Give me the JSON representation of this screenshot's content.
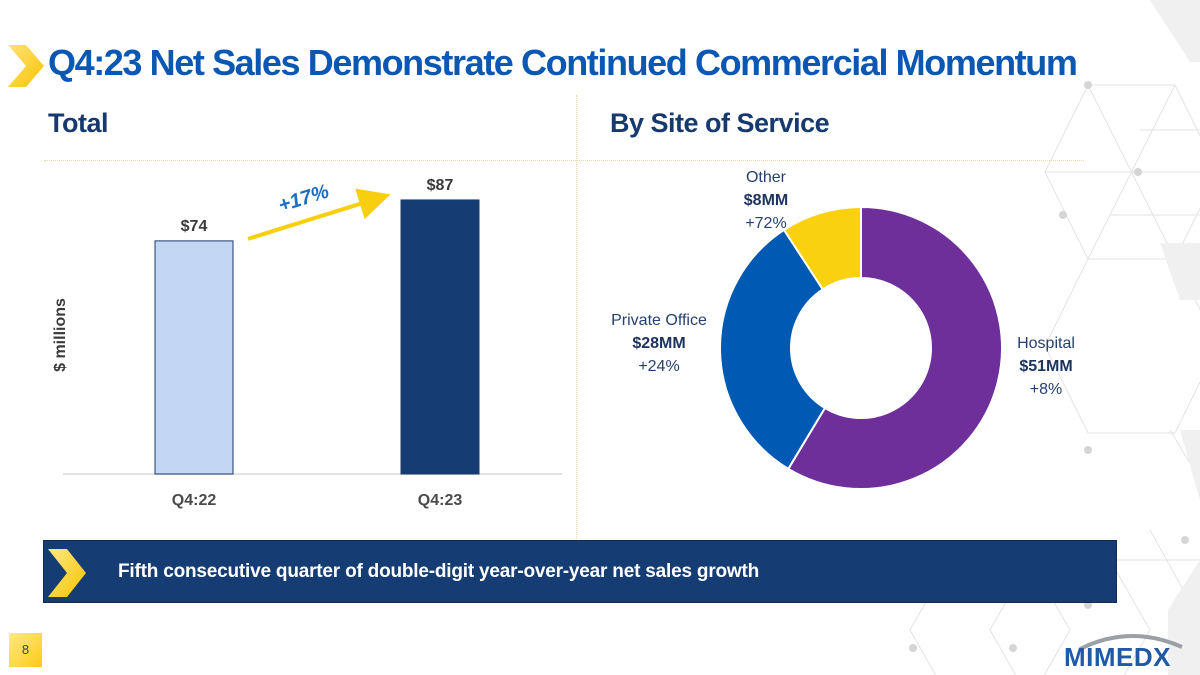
{
  "slide": {
    "title": "Q4:23 Net Sales Demonstrate Continued Commercial Momentum",
    "page_number": "8",
    "logo_text": "MIMEDX",
    "callout_text": "Fifth consecutive quarter of double-digit year-over-year net sales growth",
    "colors": {
      "title_blue": "#0a58b4",
      "navy": "#163d73",
      "accent_yellow": "#f8cf0e",
      "light_blue_bar": "#c3d6f3",
      "dark_blue_bar": "#163d73",
      "hospital": "#6e2f9b",
      "private_office": "#005ab4",
      "other": "#fad10f"
    }
  },
  "sections": {
    "left_title": "Total",
    "right_title": "By Site of Service"
  },
  "chart_data": [
    {
      "type": "bar",
      "title": "Total",
      "categories": [
        "Q4:22",
        "Q4:23"
      ],
      "values": [
        74,
        87
      ],
      "data_labels": [
        "$74",
        "$87"
      ],
      "xlabel": "",
      "ylabel": "$ millions",
      "ylim": [
        0,
        100
      ],
      "grid": false,
      "annotation": {
        "text": "+17%",
        "type": "arrow",
        "from": "Q4:22",
        "to": "Q4:23"
      }
    },
    {
      "type": "pie",
      "style": "donut",
      "title": "By Site of Service",
      "slices": [
        {
          "name": "Hospital",
          "value": 51,
          "label": "$51MM",
          "growth": "+8%",
          "color": "#6e2f9b"
        },
        {
          "name": "Private Office",
          "value": 28,
          "label": "$28MM",
          "growth": "+24%",
          "color": "#005ab4"
        },
        {
          "name": "Other",
          "value": 8,
          "label": "$8MM",
          "growth": "+72%",
          "color": "#fad10f"
        }
      ],
      "start": "top",
      "direction": "clockwise",
      "unit": "$MM"
    }
  ]
}
